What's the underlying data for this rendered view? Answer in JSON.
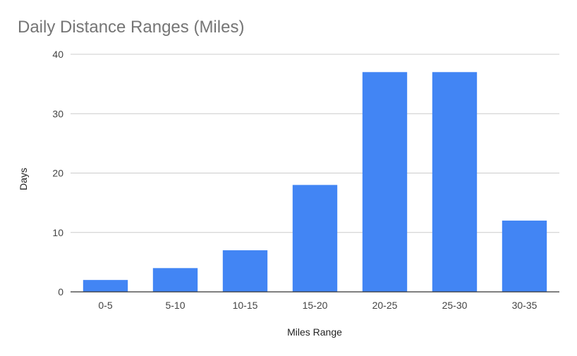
{
  "chart_data": {
    "type": "bar",
    "title": "Daily Distance Ranges (Miles)",
    "xlabel": "Miles Range",
    "ylabel": "Days",
    "categories": [
      "0-5",
      "5-10",
      "10-15",
      "15-20",
      "20-25",
      "25-30",
      "30-35"
    ],
    "values": [
      2,
      4,
      7,
      18,
      37,
      37,
      12
    ],
    "ylim": [
      0,
      40
    ],
    "yticks": [
      0,
      10,
      20,
      30,
      40
    ],
    "grid": true,
    "legend": "none",
    "colors": {
      "bar": "#4285f4",
      "grid": "#cccccc",
      "title": "#757575"
    }
  }
}
